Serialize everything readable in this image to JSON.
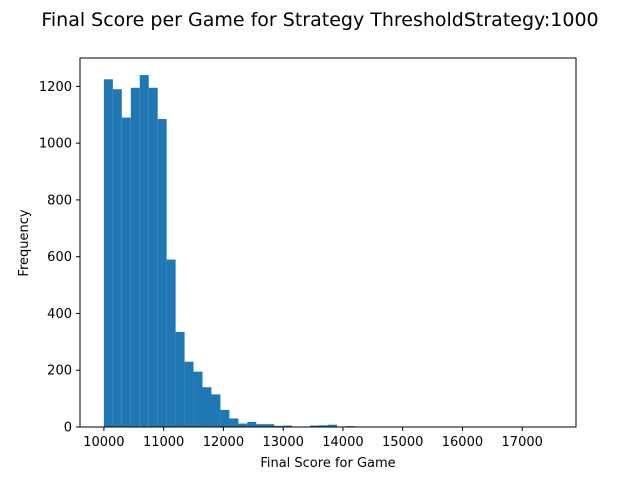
{
  "chart_data": {
    "type": "bar",
    "title": "Final Score per Game for Strategy ThresholdStrategy:1000",
    "xlabel": "Final Score for Game",
    "ylabel": "Frequency",
    "xlim": [
      9600,
      17900
    ],
    "ylim": [
      0,
      1300
    ],
    "xticks": [
      10000,
      11000,
      12000,
      13000,
      14000,
      15000,
      16000,
      17000
    ],
    "yticks": [
      0,
      200,
      400,
      600,
      800,
      1000,
      1200
    ],
    "bin_start": 10000,
    "bin_width": 150,
    "values": [
      1225,
      1190,
      1090,
      1195,
      1240,
      1195,
      1085,
      590,
      335,
      230,
      195,
      140,
      115,
      60,
      30,
      12,
      18,
      10,
      10,
      4,
      5,
      1,
      1,
      5,
      6,
      8,
      1,
      3,
      1,
      1,
      0,
      0,
      0,
      0,
      0,
      0,
      0,
      0,
      0,
      0,
      0,
      0,
      0,
      0,
      0,
      0,
      0,
      1,
      0,
      1
    ],
    "bar_color": "#1f77b4",
    "grid": false
  }
}
